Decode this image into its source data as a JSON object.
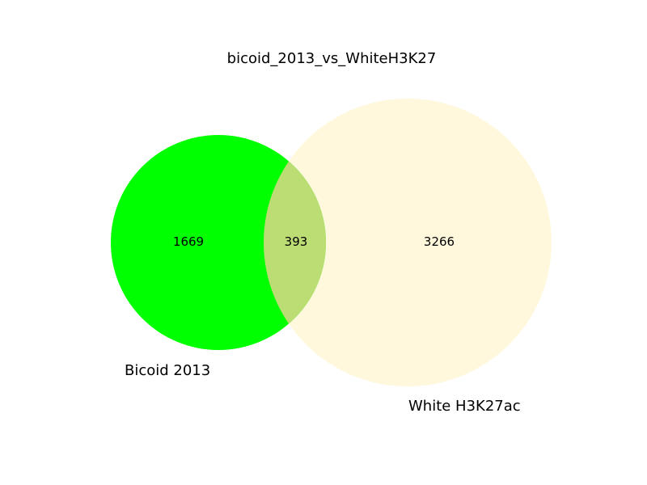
{
  "chart_data": {
    "type": "venn",
    "title": "bicoid_2013_vs_WhiteH3K27",
    "sets": [
      {
        "name": "Bicoid 2013",
        "color": "#00ff00"
      },
      {
        "name": "White H3K27ac",
        "color": "#fff8dc"
      }
    ],
    "regions": {
      "only_a": "1669",
      "overlap": "393",
      "only_b": "3266"
    },
    "overlap_color": "#bcdc74"
  }
}
